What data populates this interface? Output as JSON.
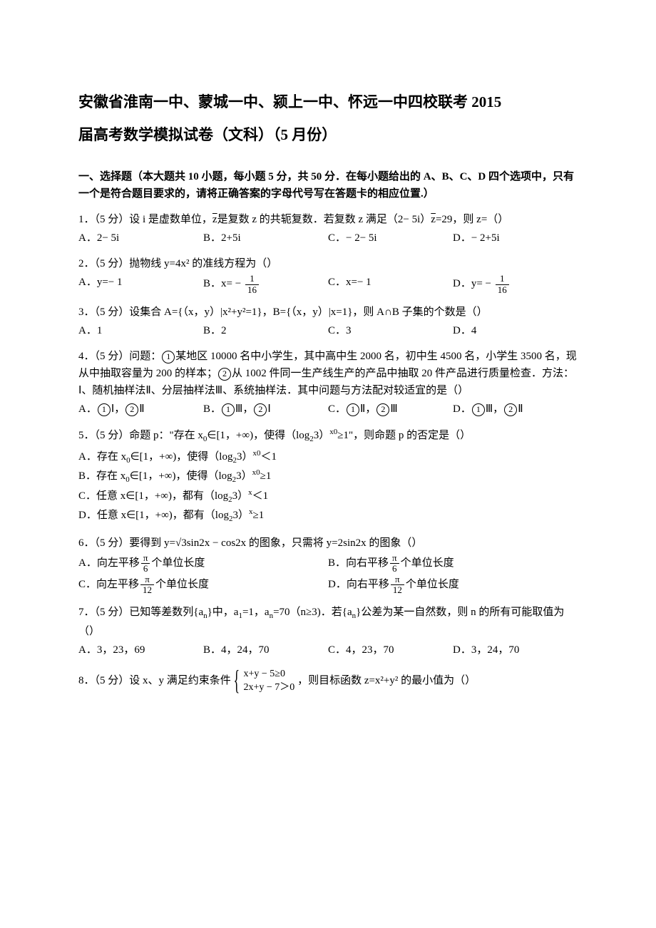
{
  "title_line1": "安徽省淮南一中、蒙城一中、颍上一中、怀远一中四校联考 2015",
  "title_line2": "届高考数学模拟试卷（文科）（5 月份）",
  "section1_header": "一、选择题（本大题共 10 小题，每小题 5 分，共 50 分．在每小题给出的 A、B、C、D 四个选项中，只有一个是符合题目要求的，请将正确答案的字母代号写在答题卡的相应位置.）",
  "q1": {
    "stem_prefix": "1．（5 分）设 i 是虚数单位，",
    "stem_mid": "是复数 z 的共轭复数．若复数 z 满足（2− 5i）",
    "stem_suffix": "=29，则 z=（）",
    "A": "A．2− 5i",
    "B": "B．2+5i",
    "C": "C．− 2− 5i",
    "D": "D．− 2+5i"
  },
  "q2": {
    "stem": "2．（5 分）抛物线 y=4x² 的准线方程为（）",
    "A": "A．y=− 1",
    "B_prefix": "B．x= −",
    "B_num": "1",
    "B_den": "16",
    "C": "C．x=− 1",
    "D_prefix": "D．y= −",
    "D_num": "1",
    "D_den": "16"
  },
  "q3": {
    "stem": "3．（5 分）设集合 A={（x，y）|x²+y²=1}，B={（x，y）|x=1}，则 A∩B 子集的个数是（）",
    "A": "A．1",
    "B": "B．2",
    "C": "C．3",
    "D": "D．4"
  },
  "q4": {
    "stem_p1": "4．（5 分）问题：",
    "c1": "1",
    "stem_p2": "某地区 10000 名中小学生，其中高中生 2000 名，初中生 4500 名，小学生 3500 名，现从中抽取容量为 200 的样本；",
    "c2": "2",
    "stem_p3": "从 1002 件同一生产线生产的产品中抽取 20 件产品进行质量检查．方法：Ⅰ、随机抽样法Ⅱ、分层抽样法Ⅲ、系统抽样法．其中问题与方法配对较适宜的是（）",
    "A_p1": "A．",
    "A_c1": "1",
    "A_p2": "Ⅰ，",
    "A_c2": "2",
    "A_p3": "Ⅱ",
    "B_p1": "B．",
    "B_c1": "1",
    "B_p2": "Ⅲ，",
    "B_c2": "2",
    "B_p3": "Ⅰ",
    "C_p1": "C．",
    "C_c1": "1",
    "C_p2": "Ⅱ，",
    "C_c2": "2",
    "C_p3": "Ⅲ",
    "D_p1": "D．",
    "D_c1": "1",
    "D_p2": "Ⅲ，",
    "D_c2": "2",
    "D_p3": "Ⅱ"
  },
  "q5": {
    "stem_p1": "5．（5 分）命题 p：\"存在 x",
    "sub0": "0",
    "stem_p2": "∈[1，+∞)，使得（log",
    "sub2": "2",
    "stem_p3": "3）",
    "sup_x0": "x0",
    "stem_p4": "≥1\"，则命题 p 的否定是（）",
    "A_p1": "A．存在 x",
    "A_p2": "∈[1，+∞)，使得（log",
    "A_p3": "3）",
    "A_p4": "＜1",
    "B_p1": "B．存在 x",
    "B_p2": "∈[1，+∞)，使得（log",
    "B_p3": "3）",
    "B_p4": "≥1",
    "C_p1": "C．任意 x∈[1，+∞)，都有（log",
    "C_p2": "3）",
    "C_sup": "x",
    "C_p3": "＜1",
    "D_p1": "D．任意 x∈[1，+∞)，都有（log",
    "D_p2": "3）",
    "D_sup": "x",
    "D_p3": "≥1"
  },
  "q6": {
    "stem_p1": "6．（5 分）要得到 y=",
    "sqrt3": "√3",
    "stem_p2": "sin2x − cos2x 的图象，只需将 y=2sin2x 的图象（）",
    "A_p1": "A．向左平移",
    "A_num": "π",
    "A_den": "6",
    "A_p2": "个单位长度",
    "B_p1": "B．向右平移",
    "B_num": "π",
    "B_den": "6",
    "B_p2": "个单位长度",
    "C_p1": "C．向左平移",
    "C_num": "π",
    "C_den": "12",
    "C_p2": "个单位长度",
    "D_p1": "D．向右平移",
    "D_num": "π",
    "D_den": "12",
    "D_p2": "个单位长度"
  },
  "q7": {
    "stem_p1": "7．（5 分）已知等差数列{a",
    "sub_n": "n",
    "stem_p2": "}中，a",
    "sub_1": "1",
    "stem_p3": "=1，a",
    "stem_p4": "=70（n≥3)．若{a",
    "stem_p5": "}公差为某一自然数，则 n 的所有可能取值为（）",
    "A": "A．3，23，69",
    "B": "B．4，24，70",
    "C": "C．4，23，70",
    "D": "D．3，24，70"
  },
  "q8": {
    "stem_p1": "8．（5 分）设 x、y 满足约束条件",
    "line1": "x+y − 5≥0",
    "line2": "2x+y − 7＞0",
    "stem_p2": "，则目标函数 z=x²+y² 的最小值为（）"
  }
}
